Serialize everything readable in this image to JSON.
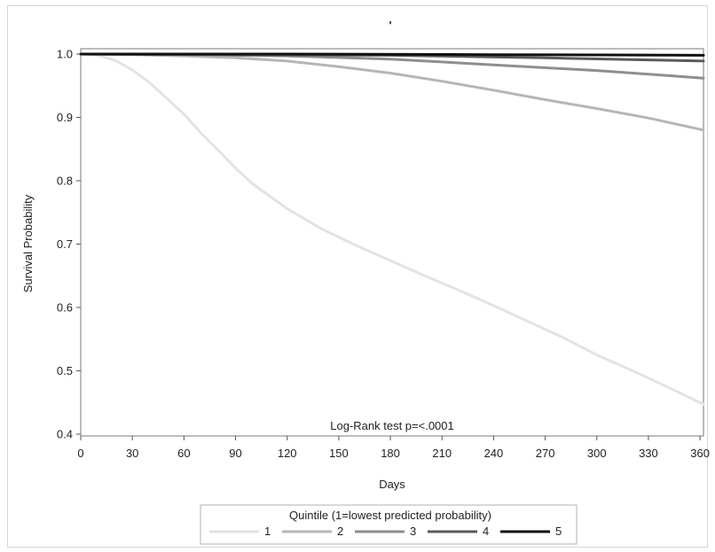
{
  "chart_data": {
    "type": "line",
    "title": "'",
    "xlabel": "Days",
    "ylabel": "Survival Probability",
    "xlim": [
      0,
      362
    ],
    "ylim": [
      0.4,
      1.0
    ],
    "xticks": [
      0,
      30,
      60,
      90,
      120,
      150,
      180,
      210,
      240,
      270,
      300,
      330,
      360
    ],
    "yticks": [
      0.4,
      0.5,
      0.6,
      0.7,
      0.8,
      0.9,
      1.0
    ],
    "grid": false,
    "annotation": "Log-Rank test p=<.0001",
    "legend": {
      "title": "Quintile (1=lowest predicted probability)",
      "placement": "bottom"
    },
    "series": [
      {
        "name": "1",
        "color": "#e3e3e3",
        "x": [
          0,
          10,
          20,
          30,
          40,
          50,
          60,
          70,
          80,
          90,
          100,
          120,
          140,
          160,
          180,
          200,
          220,
          240,
          260,
          280,
          300,
          320,
          340,
          362
        ],
        "y": [
          1.0,
          0.998,
          0.99,
          0.975,
          0.955,
          0.93,
          0.905,
          0.875,
          0.848,
          0.82,
          0.795,
          0.756,
          0.724,
          0.698,
          0.674,
          0.65,
          0.627,
          0.603,
          0.578,
          0.553,
          0.525,
          0.501,
          0.476,
          0.447
        ]
      },
      {
        "name": "2",
        "color": "#b6b6b6",
        "x": [
          0,
          30,
          60,
          90,
          120,
          150,
          180,
          210,
          240,
          270,
          300,
          330,
          362
        ],
        "y": [
          1.0,
          0.999,
          0.997,
          0.994,
          0.989,
          0.98,
          0.97,
          0.957,
          0.943,
          0.928,
          0.914,
          0.899,
          0.88
        ]
      },
      {
        "name": "3",
        "color": "#8e8e8e",
        "x": [
          0,
          60,
          120,
          180,
          240,
          300,
          362
        ],
        "y": [
          1.0,
          0.999,
          0.997,
          0.992,
          0.983,
          0.974,
          0.962
        ]
      },
      {
        "name": "4",
        "color": "#5a5a5a",
        "x": [
          0,
          90,
          180,
          270,
          362
        ],
        "y": [
          1.0,
          0.999,
          0.998,
          0.994,
          0.989
        ]
      },
      {
        "name": "5",
        "color": "#111111",
        "x": [
          0,
          120,
          240,
          362
        ],
        "y": [
          1.0,
          1.0,
          0.999,
          0.998
        ]
      }
    ]
  }
}
